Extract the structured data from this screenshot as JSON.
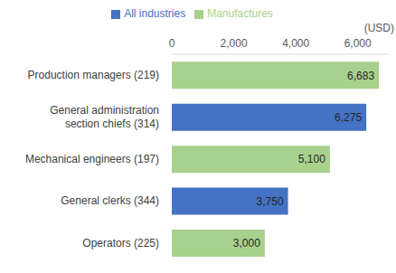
{
  "chart_data": {
    "type": "bar",
    "orientation": "horizontal",
    "stacked": true,
    "categories": [
      "Production managers (219)",
      "General administration section chiefs (314)",
      "Mechanical engineers (197)",
      "General clerks (344)",
      "Operators (225)"
    ],
    "series": [
      {
        "name": "All industries",
        "color": "#4472c4",
        "values": [
          null,
          6275,
          null,
          3750,
          null
        ],
        "value_labels": [
          null,
          "6,275",
          null,
          "3,750",
          null
        ]
      },
      {
        "name": "Manufactures",
        "color": "#a9d18e",
        "values": [
          6683,
          null,
          5100,
          null,
          3000
        ],
        "value_labels": [
          "6,683",
          null,
          "5,100",
          null,
          "3,000"
        ]
      }
    ],
    "xlabel": "(USD)",
    "xlim": [
      0,
      7000
    ],
    "xticks": [
      0,
      {
        "value": 2000,
        "label": "2,000"
      },
      {
        "value": 4000,
        "label": "4,000"
      },
      {
        "value": 6000,
        "label": "6,000"
      }
    ],
    "grid": false,
    "legend": "top",
    "data_labels": true
  }
}
